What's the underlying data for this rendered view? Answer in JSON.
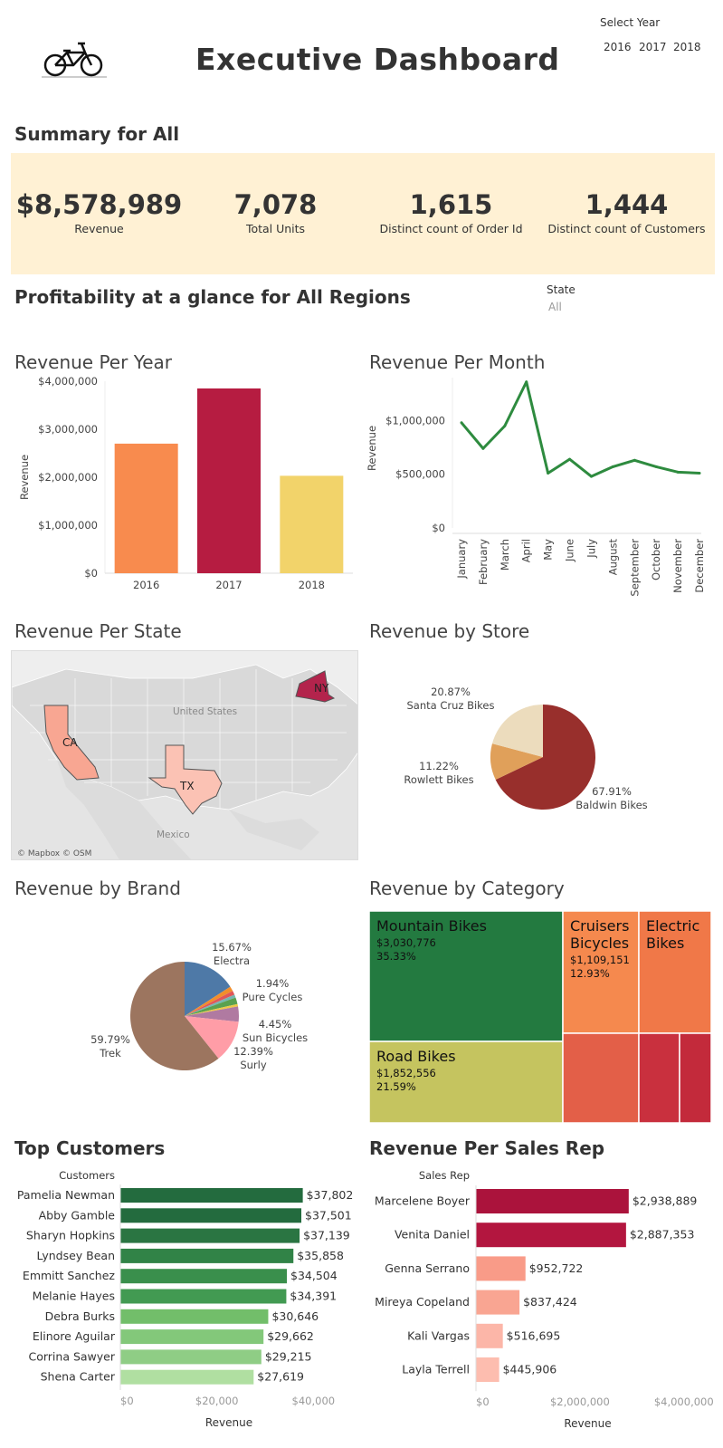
{
  "header": {
    "title": "Executive Dashboard",
    "logo_icon": "bicycle-icon",
    "year_filter": {
      "label": "Select Year",
      "options": [
        "2016",
        "2017",
        "2018"
      ]
    }
  },
  "summary": {
    "heading": "Summary for All",
    "kpis": [
      {
        "value": "$8,578,989",
        "label": "Revenue"
      },
      {
        "value": "7,078",
        "label": "Total Units"
      },
      {
        "value": "1,615",
        "label": "Distinct count of Order Id"
      },
      {
        "value": "1,444",
        "label": "Distinct count of Customers"
      }
    ]
  },
  "profitability": {
    "heading": "Profitability at a glance for All Regions",
    "state_filter": {
      "label": "State",
      "value": "All"
    }
  },
  "charts": {
    "revenue_per_year": {
      "title": "Revenue Per Year"
    },
    "revenue_per_month": {
      "title": "Revenue Per Month"
    },
    "revenue_per_state": {
      "title": "Revenue Per State",
      "map_labels": [
        "United States",
        "Mexico"
      ],
      "attribution": "© Mapbox © OSM"
    },
    "revenue_by_store": {
      "title": "Revenue by Store"
    },
    "revenue_by_brand": {
      "title": "Revenue by Brand"
    },
    "revenue_by_category": {
      "title": "Revenue by Category"
    },
    "top_customers": {
      "title": "Top Customers"
    },
    "revenue_per_sales_rep": {
      "title": "Revenue Per Sales Rep"
    }
  },
  "chart_data": [
    {
      "id": "revenue_per_year",
      "type": "bar",
      "categories": [
        "2016",
        "2017",
        "2018"
      ],
      "values": [
        2700000,
        3850000,
        2030000
      ],
      "ylabel": "Revenue",
      "ylim": [
        0,
        4000000
      ],
      "yticks": [
        "$0",
        "$1,000,000",
        "$2,000,000",
        "$3,000,000",
        "$4,000,000"
      ],
      "colors": [
        "#f88b4e",
        "#b61c41",
        "#f2d36a"
      ]
    },
    {
      "id": "revenue_per_month",
      "type": "line",
      "categories": [
        "January",
        "February",
        "March",
        "April",
        "May",
        "June",
        "July",
        "August",
        "September",
        "October",
        "November",
        "December"
      ],
      "values": [
        980000,
        740000,
        950000,
        1360000,
        510000,
        640000,
        480000,
        570000,
        630000,
        570000,
        520000,
        510000
      ],
      "ylabel": "Revenue",
      "ylim": [
        0,
        1400000
      ],
      "yticks": [
        "$0",
        "$500,000",
        "$1,000,000"
      ],
      "color": "#2e8b3f"
    },
    {
      "id": "revenue_per_state",
      "type": "map",
      "regions": [
        {
          "name": "CA",
          "color": "#f8a692"
        },
        {
          "name": "TX",
          "color": "#fbc2b4"
        },
        {
          "name": "NY",
          "color": "#b3244c"
        }
      ]
    },
    {
      "id": "revenue_by_store",
      "type": "pie",
      "slices": [
        {
          "name": "Baldwin Bikes",
          "value": 67.91,
          "label": "67.91%",
          "color": "#982f2c"
        },
        {
          "name": "Rowlett Bikes",
          "value": 11.22,
          "label": "11.22%",
          "color": "#e0a05a"
        },
        {
          "name": "Santa Cruz Bikes",
          "value": 20.87,
          "label": "20.87%",
          "color": "#ecdcbd"
        }
      ]
    },
    {
      "id": "revenue_by_brand",
      "type": "pie",
      "slices": [
        {
          "name": "Electra",
          "value": 15.67,
          "label": "15.67%",
          "color": "#4e79a7"
        },
        {
          "name": "",
          "value": 1.4,
          "label": "",
          "color": "#f28e2b"
        },
        {
          "name": "",
          "value": 1.2,
          "label": "",
          "color": "#e15759"
        },
        {
          "name": "",
          "value": 0.9,
          "label": "",
          "color": "#76b7b2"
        },
        {
          "name": "Pure Cycles",
          "value": 1.94,
          "label": "1.94%",
          "color": "#59a14f"
        },
        {
          "name": "",
          "value": 0.72,
          "label": "",
          "color": "#edc948"
        },
        {
          "name": "Sun Bicycles",
          "value": 4.45,
          "label": "4.45%",
          "color": "#b07aa1"
        },
        {
          "name": "Surly",
          "value": 12.39,
          "label": "12.39%",
          "color": "#ff9da7"
        },
        {
          "name": "Trek",
          "value": 59.79,
          "label": "59.79%",
          "color": "#9c755f"
        }
      ]
    },
    {
      "id": "revenue_by_category",
      "type": "treemap",
      "items": [
        {
          "name": "Mountain Bikes",
          "value": "$3,030,776",
          "pct": "35.33%",
          "color": "#237a40"
        },
        {
          "name": "Road Bikes",
          "value": "$1,852,556",
          "pct": "21.59%",
          "color": "#c5c45f"
        },
        {
          "name": "Cruisers Bicycles",
          "value": "$1,109,151",
          "pct": "12.93%",
          "color": "#f5894e"
        },
        {
          "name": "Electric Bikes",
          "value": "",
          "pct": "",
          "color": "#f07848"
        },
        {
          "name": "",
          "value": "",
          "pct": "",
          "color": "#e35f48"
        },
        {
          "name": "",
          "value": "",
          "pct": "",
          "color": "#c9303e"
        },
        {
          "name": "",
          "value": "",
          "pct": "",
          "color": "#c32a3b"
        }
      ]
    },
    {
      "id": "top_customers",
      "type": "bar",
      "orientation": "horizontal",
      "ylabel": "Customers",
      "xlabel": "Revenue",
      "xlim": [
        0,
        45000
      ],
      "xticks": [
        "$0",
        "$20,000",
        "$40,000"
      ],
      "categories": [
        "Pamelia Newman",
        "Abby Gamble",
        "Sharyn Hopkins",
        "Lyndsey Bean",
        "Emmitt Sanchez",
        "Melanie Hayes",
        "Debra Burks",
        "Elinore Aguilar",
        "Corrina Sawyer",
        "Shena Carter"
      ],
      "values": [
        37802,
        37501,
        37139,
        35858,
        34504,
        34391,
        30646,
        29662,
        29215,
        27619
      ],
      "labels": [
        "$37,802",
        "$37,501",
        "$37,139",
        "$35,858",
        "$34,504",
        "$34,391",
        "$30,646",
        "$29,662",
        "$29,215",
        "$27,619"
      ],
      "colors": [
        "#236b3e",
        "#236b3e",
        "#2a7542",
        "#318347",
        "#3a8f4c",
        "#429a52",
        "#72be6a",
        "#83c87a",
        "#8fcd85",
        "#b0dfa1"
      ]
    },
    {
      "id": "revenue_per_sales_rep",
      "type": "bar",
      "orientation": "horizontal",
      "ylabel": "Sales Rep",
      "xlabel": "Revenue",
      "xlim": [
        0,
        4300000
      ],
      "xticks": [
        "$0",
        "$2,000,000",
        "$4,000,000"
      ],
      "categories": [
        "Marcelene Boyer",
        "Venita Daniel",
        "Genna Serrano",
        "Mireya Copeland",
        "Kali Vargas",
        "Layla Terrell"
      ],
      "values": [
        2938889,
        2887353,
        952722,
        837424,
        516695,
        445906
      ],
      "labels": [
        "$2,938,889",
        "$2,887,353",
        "$952,722",
        "$837,424",
        "$516,695",
        "$445,906"
      ],
      "colors": [
        "#ab133c",
        "#b3163f",
        "#f99b88",
        "#f9a592",
        "#fcb6a8",
        "#fdbdaf"
      ]
    }
  ]
}
